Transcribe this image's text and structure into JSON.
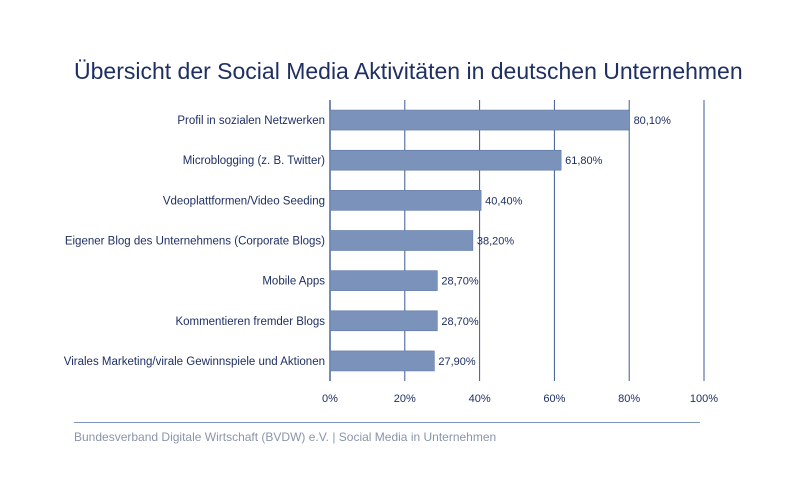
{
  "footer": "Bundesverband Digitale Wirtschaft (BVDW) e.V. | Social Media in Unternehmen",
  "colors": {
    "bar": "#7b93bb",
    "bar_edge": "#5f78a6",
    "axis": "#3d5a94",
    "title": "#1f2f63",
    "label": "#1f2f63",
    "footer": "#8a95ab"
  },
  "chart_data": {
    "type": "bar",
    "orientation": "horizontal",
    "title": "Übersicht der Social Media Aktivitäten in deutschen Unternehmen",
    "categories": [
      "Profil in sozialen Netzwerken",
      "Microblogging (z. B. Twitter)",
      "Vdeoplattformen/Video Seeding",
      "Eigener Blog des Unternehmens (Corporate Blogs)",
      "Mobile Apps",
      "Kommentieren fremder Blogs",
      "Virales Marketing/virale Gewinnspiele und Aktionen"
    ],
    "values": [
      80.1,
      61.8,
      40.4,
      38.2,
      28.7,
      28.7,
      27.9
    ],
    "value_labels": [
      "80,10%",
      "61,80%",
      "40,40%",
      "38,20%",
      "28,70%",
      "28,70%",
      "27,90%"
    ],
    "xlim": [
      0,
      100
    ],
    "xticks": [
      0,
      20,
      40,
      60,
      80,
      100
    ],
    "xtick_labels": [
      "0%",
      "20%",
      "40%",
      "60%",
      "80%",
      "100%"
    ],
    "grid": true,
    "legend": "none"
  }
}
